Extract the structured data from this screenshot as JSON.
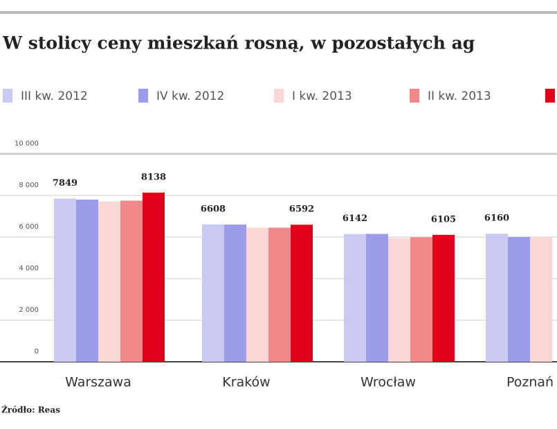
{
  "chart_data": {
    "type": "bar",
    "title": "W stolicy ceny mieszkań rosną, w pozostałych ag",
    "categories": [
      "Warszawa",
      "Kraków",
      "Wrocław",
      "Poznań"
    ],
    "series": [
      {
        "name": "III kw. 2012",
        "color": "#c9c9f2",
        "show_labels": true,
        "values": [
          7849,
          6608,
          6142,
          6160
        ]
      },
      {
        "name": "IV kw. 2012",
        "color": "#9c9ce8",
        "show_labels": false,
        "values": [
          7800,
          6600,
          6150,
          6000
        ]
      },
      {
        "name": "I kw. 2013",
        "color": "#fbd6d6",
        "show_labels": false,
        "values": [
          7700,
          6450,
          5950,
          6000
        ]
      },
      {
        "name": "II kw. 2013",
        "color": "#f08a8a",
        "show_labels": false,
        "values": [
          7750,
          6450,
          5990,
          null
        ]
      },
      {
        "name": null,
        "color": "#e3001b",
        "show_labels": true,
        "values": [
          8138,
          6592,
          6105,
          null
        ]
      }
    ],
    "ylim": [
      0,
      10000
    ],
    "yticks": [
      0,
      {
        "value": 2000,
        "label": "2 000"
      },
      {
        "value": 4000,
        "label": "4 000"
      },
      {
        "value": 6000,
        "label": "6 000"
      },
      {
        "value": 8000,
        "label": "8 000"
      },
      {
        "value": 10000,
        "label": "10 000"
      }
    ],
    "grid": true,
    "source": "Źródło: Reas"
  }
}
